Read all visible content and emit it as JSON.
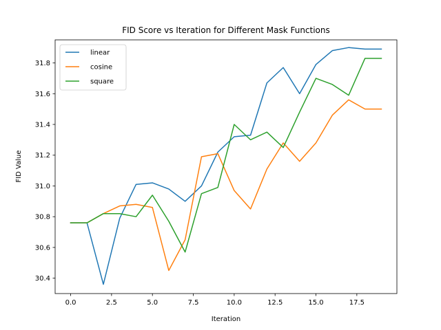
{
  "chart_data": {
    "type": "line",
    "title": "FID Score vs Iteration for Different Mask Functions",
    "xlabel": "Iteration",
    "ylabel": "FID Value",
    "xlim": [
      -0.95,
      19.95
    ],
    "ylim": [
      30.3,
      31.95
    ],
    "xticks": [
      "0.0",
      "2.5",
      "5.0",
      "7.5",
      "10.0",
      "12.5",
      "15.0",
      "17.5"
    ],
    "yticks": [
      "30.4",
      "30.6",
      "30.8",
      "31.0",
      "31.2",
      "31.4",
      "31.6",
      "31.8"
    ],
    "grid": false,
    "legend": "upper left",
    "x": [
      0,
      1,
      2,
      3,
      4,
      5,
      6,
      7,
      8,
      9,
      10,
      11,
      12,
      13,
      14,
      15,
      16,
      17,
      18,
      19
    ],
    "series": [
      {
        "name": "linear",
        "color": "#1f77b4",
        "values": [
          30.76,
          30.76,
          30.36,
          30.79,
          31.01,
          31.02,
          30.98,
          30.9,
          31.0,
          31.22,
          31.32,
          31.33,
          31.67,
          31.77,
          31.6,
          31.79,
          31.88,
          31.9,
          31.89,
          31.89
        ]
      },
      {
        "name": "cosine",
        "color": "#ff7f0e",
        "values": [
          30.76,
          30.76,
          30.82,
          30.87,
          30.88,
          30.86,
          30.45,
          30.65,
          31.19,
          31.21,
          30.97,
          30.85,
          31.11,
          31.28,
          31.16,
          31.28,
          31.46,
          31.56,
          31.5,
          31.5
        ]
      },
      {
        "name": "square",
        "color": "#2ca02c",
        "values": [
          30.76,
          30.76,
          30.82,
          30.82,
          30.8,
          30.94,
          30.77,
          30.57,
          30.95,
          30.99,
          31.4,
          31.3,
          31.35,
          31.25,
          31.48,
          31.7,
          31.66,
          31.59,
          31.83,
          31.83
        ]
      }
    ]
  }
}
